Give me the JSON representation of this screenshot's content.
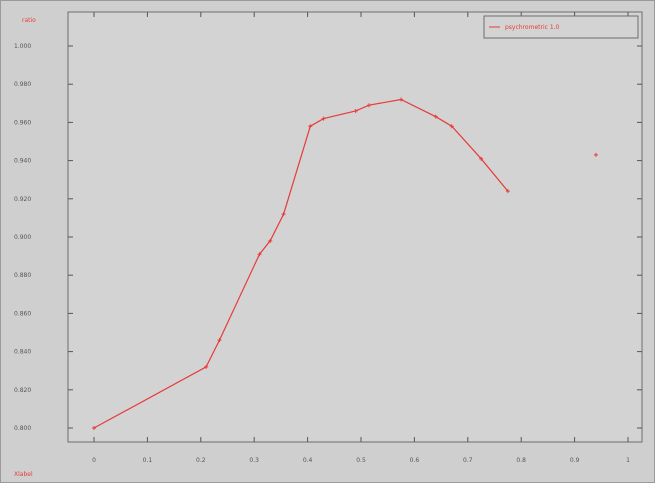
{
  "chart_data": {
    "type": "line",
    "title": "",
    "corner_label": "ratio",
    "xlabel": "Xlabel",
    "ylabel": "",
    "xlim": [
      0,
      1
    ],
    "ylim": [
      0.8,
      1.0
    ],
    "x_ticks": [
      0,
      0.1,
      0.2,
      0.3,
      0.4,
      0.5,
      0.6,
      0.7,
      0.8,
      0.9,
      1
    ],
    "x_tick_labels": [
      "0",
      "0.1",
      "0.2",
      "0.3",
      "0.4",
      "0.5",
      "0.6",
      "0.7",
      "0.8",
      "0.9",
      "1"
    ],
    "y_ticks": [
      0.8,
      0.82,
      0.84,
      0.86,
      0.88,
      0.9,
      0.92,
      0.94,
      0.96,
      0.98,
      1.0
    ],
    "y_tick_labels": [
      "0.800",
      "0.820",
      "0.840",
      "0.860",
      "0.880",
      "0.900",
      "0.920",
      "0.940",
      "0.960",
      "0.980",
      "1.000"
    ],
    "grid": false,
    "legend_position": "top-right",
    "series": [
      {
        "name": "psychrometric 1.0",
        "color": "#e83a3a",
        "x": [
          0,
          0.21,
          0.235,
          0.31,
          0.33,
          0.355,
          0.405,
          0.43,
          0.49,
          0.515,
          0.575,
          0.64,
          0.67,
          0.725,
          0.775
        ],
        "y": [
          0.8,
          0.832,
          0.846,
          0.891,
          0.898,
          0.912,
          0.958,
          0.962,
          0.966,
          0.969,
          0.972,
          0.963,
          0.958,
          0.941,
          0.924
        ]
      }
    ],
    "extra_points": [
      {
        "x": 0.94,
        "y": 0.943,
        "color": "#e83a3a"
      }
    ]
  }
}
